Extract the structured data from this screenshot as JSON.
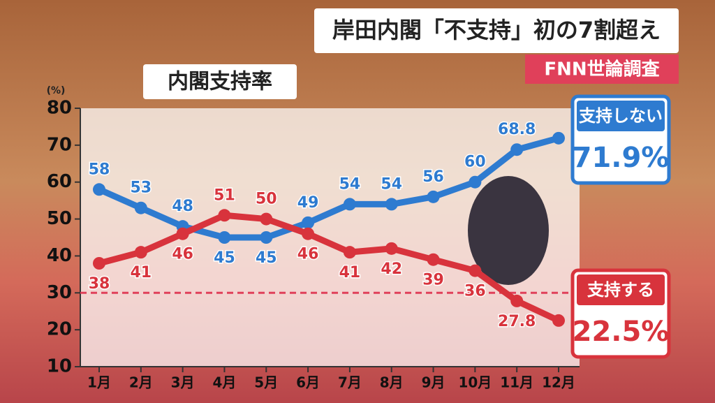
{
  "chart_data": {
    "type": "line",
    "title": "岸田内閣「不支持」初の7割超え",
    "subtitle": "FNN世論調査",
    "chart_title": "内閣支持率",
    "y_unit": "(%)",
    "categories": [
      "1月",
      "2月",
      "3月",
      "4月",
      "5月",
      "6月",
      "7月",
      "8月",
      "9月",
      "10月",
      "11月",
      "12月"
    ],
    "series": [
      {
        "name": "支持しない",
        "color": "#2e7bd0",
        "values": [
          58,
          53,
          48,
          45,
          45,
          49,
          54,
          54,
          56,
          60,
          68.8,
          71.9
        ],
        "value_labels": [
          "58",
          "53",
          "48",
          "45",
          "45",
          "49",
          "54",
          "54",
          "56",
          "60",
          "68.8",
          "71.9%"
        ]
      },
      {
        "name": "支持する",
        "color": "#d8333c",
        "values": [
          38,
          41,
          46,
          51,
          50,
          46,
          41,
          42,
          39,
          36,
          27.8,
          22.5
        ],
        "value_labels": [
          "38",
          "41",
          "46",
          "51",
          "50",
          "46",
          "41",
          "42",
          "39",
          "36",
          "27.8",
          "22.5%"
        ]
      }
    ],
    "ylim": [
      10,
      80
    ],
    "yticks": [
      10,
      20,
      30,
      40,
      50,
      60,
      70,
      80
    ],
    "reference_line": 30
  }
}
